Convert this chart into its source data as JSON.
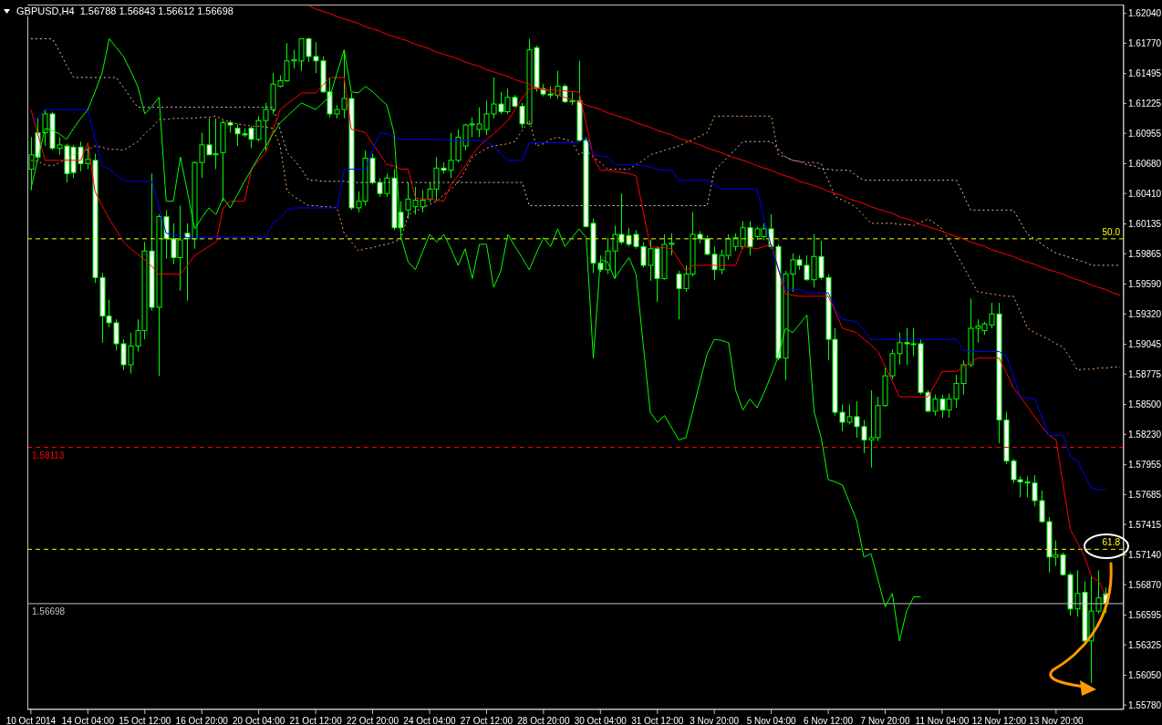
{
  "chart_data": {
    "type": "candlestick",
    "title": "GBPUSD,H4  1.56788 1.56843 1.56612 1.56698",
    "color": "#00ff00",
    "categories": [
      "10 Oct 2014",
      null,
      null,
      null,
      null,
      null,
      null,
      null,
      "14 Oct 04:00",
      null,
      null,
      null,
      null,
      null,
      null,
      null,
      "15 Oct 12:00",
      null,
      null,
      null,
      null,
      null,
      null,
      null,
      "16 Oct 20:00",
      null,
      null,
      null,
      null,
      null,
      null,
      null,
      "20 Oct 04:00",
      null,
      null,
      null,
      null,
      null,
      null,
      null,
      "21 Oct 12:00",
      null,
      null,
      null,
      null,
      null,
      null,
      null,
      "22 Oct 20:00",
      null,
      null,
      null,
      null,
      null,
      null,
      null,
      "24 Oct 04:00",
      null,
      null,
      null,
      null,
      null,
      null,
      null,
      "27 Oct 12:00",
      null,
      null,
      null,
      null,
      null,
      null,
      null,
      "28 Oct 20:00",
      null,
      null,
      null,
      null,
      null,
      null,
      null,
      "30 Oct 04:00",
      null,
      null,
      null,
      null,
      null,
      null,
      null,
      "31 Oct 12:00",
      null,
      null,
      null,
      null,
      null,
      null,
      null,
      "3 Nov 20:00",
      null,
      null,
      null,
      null,
      null,
      null,
      null,
      "5 Nov 04:00",
      null,
      null,
      null,
      null,
      null,
      null,
      null,
      "6 Nov 12:00",
      null,
      null,
      null,
      null,
      null,
      null,
      null,
      "7 Nov 20:00",
      null,
      null,
      null,
      null,
      null,
      null,
      null,
      "11 Nov 04:00",
      null,
      null,
      null,
      null,
      null,
      null,
      null,
      "12 Nov 12:00",
      null,
      null,
      null,
      null,
      null,
      null,
      null,
      "13 Nov 20:00",
      null,
      null,
      null,
      null,
      null,
      null,
      null,
      null,
      null
    ],
    "ohlc": [
      [
        1.6063,
        1.6092,
        1.6044,
        1.6076
      ],
      [
        1.6096,
        1.6109,
        1.6071,
        1.6074
      ],
      [
        1.6096,
        1.6117,
        1.6084,
        1.6113
      ],
      [
        1.6113,
        1.6115,
        1.608,
        1.6082
      ],
      [
        1.6082,
        1.6092,
        1.6076,
        1.6085
      ],
      [
        1.6084,
        1.6086,
        1.6051,
        1.6059
      ],
      [
        1.6083,
        1.6085,
        1.6055,
        1.606
      ],
      [
        1.6083,
        1.6088,
        1.6061,
        1.6068
      ],
      [
        1.6068,
        1.6084,
        1.6063,
        1.6072
      ],
      [
        1.6071,
        1.6077,
        1.596,
        1.5965
      ],
      [
        1.5965,
        1.5969,
        1.5906,
        1.593
      ],
      [
        1.593,
        1.5945,
        1.592,
        1.5924
      ],
      [
        1.5924,
        1.5927,
        1.5899,
        1.5905
      ],
      [
        1.5905,
        1.5909,
        1.5881,
        1.5886
      ],
      [
        1.5886,
        1.5915,
        1.5878,
        1.5903
      ],
      [
        1.5903,
        1.5927,
        1.5898,
        1.5917
      ],
      [
        1.5917,
        1.5997,
        1.5909,
        1.5989
      ],
      [
        1.5989,
        1.6059,
        1.5935,
        1.5938
      ],
      [
        1.5938,
        1.6022,
        1.5876,
        1.602
      ],
      [
        1.602,
        1.6026,
        1.5982,
        1.6
      ],
      [
        1.6,
        1.6014,
        1.5977,
        1.5983
      ],
      [
        1.5983,
        1.603,
        1.5953,
        1.5999
      ],
      [
        1.6005,
        1.6014,
        1.5944,
        1.6
      ],
      [
        1.6,
        1.607,
        1.5991,
        1.6069
      ],
      [
        1.6069,
        1.6096,
        1.6055,
        1.6085
      ],
      [
        1.6085,
        1.6109,
        1.6076,
        1.6076
      ],
      [
        1.6076,
        1.6109,
        1.6063,
        1.6077
      ],
      [
        1.6078,
        1.6107,
        1.6034,
        1.6105
      ],
      [
        1.6105,
        1.6107,
        1.6096,
        1.6103
      ],
      [
        1.61,
        1.6104,
        1.6084,
        1.6095
      ],
      [
        1.6095,
        1.61,
        1.6092,
        1.6094
      ],
      [
        1.61,
        1.6102,
        1.6082,
        1.609
      ],
      [
        1.609,
        1.6111,
        1.6088,
        1.6107
      ],
      [
        1.6107,
        1.6123,
        1.608,
        1.6117
      ],
      [
        1.6117,
        1.615,
        1.6113,
        1.614
      ],
      [
        1.6138,
        1.6148,
        1.6137,
        1.6143
      ],
      [
        1.6143,
        1.6177,
        1.6142,
        1.6161
      ],
      [
        1.6161,
        1.6171,
        1.6154,
        1.6162
      ],
      [
        1.6161,
        1.6181,
        1.6152,
        1.6181
      ],
      [
        1.6181,
        1.6182,
        1.616,
        1.6165
      ],
      [
        1.6165,
        1.6178,
        1.615,
        1.6161
      ],
      [
        1.6161,
        1.6165,
        1.6132,
        1.6133
      ],
      [
        1.6133,
        1.6146,
        1.611,
        1.6113
      ],
      [
        1.6113,
        1.6121,
        1.6109,
        1.6117
      ],
      [
        1.6117,
        1.6171,
        1.6109,
        1.6127
      ],
      [
        1.6127,
        1.6132,
        1.6026,
        1.6028
      ],
      [
        1.6028,
        1.6043,
        1.6024,
        1.6034
      ],
      [
        1.6034,
        1.608,
        1.603,
        1.6073
      ],
      [
        1.6073,
        1.6077,
        1.6049,
        1.6051
      ],
      [
        1.6051,
        1.6055,
        1.6038,
        1.6041
      ],
      [
        1.6041,
        1.6059,
        1.6038,
        1.6055
      ],
      [
        1.6055,
        1.6063,
        1.6008,
        1.601
      ],
      [
        1.6024,
        1.6034,
        1.6,
        1.601
      ],
      [
        1.6026,
        1.6051,
        1.6018,
        1.6036
      ],
      [
        1.6029,
        1.6047,
        1.6022,
        1.6035
      ],
      [
        1.6029,
        1.6044,
        1.6024,
        1.6035
      ],
      [
        1.6036,
        1.6051,
        1.6033,
        1.6045
      ],
      [
        1.6045,
        1.6074,
        1.6034,
        1.6064
      ],
      [
        1.6064,
        1.6069,
        1.6059,
        1.6062
      ],
      [
        1.6062,
        1.6096,
        1.6055,
        1.6071
      ],
      [
        1.6071,
        1.6099,
        1.6069,
        1.6092
      ],
      [
        1.6084,
        1.6104,
        1.608,
        1.6103
      ],
      [
        1.6103,
        1.611,
        1.6092,
        1.6104
      ],
      [
        1.6099,
        1.6119,
        1.6092,
        1.6104
      ],
      [
        1.6099,
        1.6125,
        1.6094,
        1.6113
      ],
      [
        1.6113,
        1.6146,
        1.6109,
        1.6122
      ],
      [
        1.6122,
        1.6133,
        1.6113,
        1.6115
      ],
      [
        1.6115,
        1.6136,
        1.6113,
        1.6128
      ],
      [
        1.6128,
        1.613,
        1.6119,
        1.612
      ],
      [
        1.612,
        1.6123,
        1.61,
        1.6104
      ],
      [
        1.6104,
        1.6181,
        1.6103,
        1.6171
      ],
      [
        1.6173,
        1.6175,
        1.6133,
        1.6136
      ],
      [
        1.6136,
        1.614,
        1.6129,
        1.6131
      ],
      [
        1.6131,
        1.6138,
        1.6127,
        1.613
      ],
      [
        1.613,
        1.6152,
        1.6127,
        1.6138
      ],
      [
        1.6138,
        1.614,
        1.6123,
        1.6124
      ],
      [
        1.6124,
        1.6133,
        1.6121,
        1.6125
      ],
      [
        1.6125,
        1.6161,
        1.6088,
        1.6089
      ],
      [
        1.6089,
        1.6092,
        1.601,
        1.6011
      ],
      [
        1.6014,
        1.6018,
        1.5969,
        1.5978
      ],
      [
        1.5978,
        1.5985,
        1.597,
        1.5972
      ],
      [
        1.5972,
        1.6001,
        1.5968,
        1.5989
      ],
      [
        1.5989,
        1.6012,
        1.5964,
        1.6004
      ],
      [
        1.6004,
        1.6041,
        1.5995,
        1.5997
      ],
      [
        1.6003,
        1.601,
        1.5993,
        1.5995
      ],
      [
        1.6004,
        1.6008,
        1.5991,
        1.5993
      ],
      [
        1.5993,
        1.5997,
        1.5974,
        1.5976
      ],
      [
        1.5976,
        1.5999,
        1.5962,
        1.5991
      ],
      [
        1.5991,
        1.5993,
        1.5943,
        1.5964
      ],
      [
        1.5964,
        1.6004,
        1.5963,
        1.5995
      ],
      [
        1.5995,
        1.6005,
        1.5985,
        1.5996
      ],
      [
        1.5968,
        1.5971,
        1.5927,
        1.5955
      ],
      [
        1.5955,
        1.5976,
        1.5952,
        1.5968
      ],
      [
        1.5968,
        1.6024,
        1.5966,
        1.6004
      ],
      [
        1.6004,
        1.6007,
        1.5996,
        1.6
      ],
      [
        1.6,
        1.6003,
        1.5985,
        1.5986
      ],
      [
        1.5986,
        1.5993,
        1.5963,
        1.5972
      ],
      [
        1.5972,
        1.599,
        1.5968,
        1.5985
      ],
      [
        1.5985,
        1.6004,
        1.5981,
        1.6
      ],
      [
        1.5993,
        1.6005,
        1.5989,
        1.6001
      ],
      [
        1.5993,
        1.6016,
        1.5991,
        1.601
      ],
      [
        1.601,
        1.6016,
        1.5985,
        1.5993
      ],
      [
        1.6002,
        1.6011,
        1.5999,
        1.6009
      ],
      [
        1.6002,
        1.6014,
        1.5999,
        1.6009
      ],
      [
        1.6009,
        1.6022,
        1.5991,
        1.5993
      ],
      [
        1.5993,
        1.5995,
        1.589,
        1.5892
      ],
      [
        1.5892,
        1.5971,
        1.5872,
        1.5968
      ],
      [
        1.5968,
        1.5987,
        1.5952,
        1.5981
      ],
      [
        1.5981,
        1.5985,
        1.5972,
        1.5976
      ],
      [
        1.5976,
        1.5985,
        1.5962,
        1.5963
      ],
      [
        1.5963,
        1.6004,
        1.5956,
        1.5984
      ],
      [
        1.5984,
        1.5998,
        1.5963,
        1.5965
      ],
      [
        1.5965,
        1.5968,
        1.589,
        1.5909
      ],
      [
        1.5909,
        1.5919,
        1.584,
        1.5843
      ],
      [
        1.5843,
        1.585,
        1.5826,
        1.5834
      ],
      [
        1.5834,
        1.585,
        1.5832,
        1.5839
      ],
      [
        1.5839,
        1.5853,
        1.582,
        1.583
      ],
      [
        1.583,
        1.5836,
        1.5806,
        1.5818
      ],
      [
        1.5818,
        1.5863,
        1.5793,
        1.582
      ],
      [
        1.582,
        1.5857,
        1.5817,
        1.5849
      ],
      [
        1.5849,
        1.5884,
        1.5848,
        1.5876
      ],
      [
        1.5876,
        1.59,
        1.5873,
        1.5896
      ],
      [
        1.5896,
        1.5915,
        1.5886,
        1.5906
      ],
      [
        1.5906,
        1.5919,
        1.5886,
        1.5905
      ],
      [
        1.5905,
        1.5919,
        1.5894,
        1.5905
      ],
      [
        1.5905,
        1.5909,
        1.5859,
        1.5861
      ],
      [
        1.5861,
        1.5863,
        1.5843,
        1.5844
      ],
      [
        1.5844,
        1.5859,
        1.584,
        1.5855
      ],
      [
        1.5855,
        1.5859,
        1.5838,
        1.5845
      ],
      [
        1.5845,
        1.586,
        1.5838,
        1.5855
      ],
      [
        1.5855,
        1.5877,
        1.5847,
        1.5869
      ],
      [
        1.5869,
        1.589,
        1.5859,
        1.5886
      ],
      [
        1.5886,
        1.5946,
        1.5884,
        1.5919
      ],
      [
        1.5919,
        1.5927,
        1.5906,
        1.5921
      ],
      [
        1.5917,
        1.5925,
        1.5913,
        1.5923
      ],
      [
        1.5922,
        1.5942,
        1.5919,
        1.5932
      ],
      [
        1.5932,
        1.5942,
        1.5815,
        1.5836
      ],
      [
        1.5836,
        1.5843,
        1.5796,
        1.5799
      ],
      [
        1.5799,
        1.5801,
        1.5779,
        1.5782
      ],
      [
        1.5782,
        1.5785,
        1.5766,
        1.578
      ],
      [
        1.578,
        1.5785,
        1.5766,
        1.5779
      ],
      [
        1.5779,
        1.5786,
        1.5758,
        1.5763
      ],
      [
        1.5763,
        1.5772,
        1.5743,
        1.5744
      ],
      [
        1.5744,
        1.5748,
        1.5698,
        1.5712
      ],
      [
        1.5712,
        1.5727,
        1.5704,
        1.5714
      ],
      [
        1.5714,
        1.5716,
        1.5695,
        1.5696
      ],
      [
        1.5696,
        1.5698,
        1.5659,
        1.5665
      ],
      [
        1.5665,
        1.57,
        1.5658,
        1.5679
      ],
      [
        1.568,
        1.569,
        1.5634,
        1.5636
      ],
      [
        1.5636,
        1.5694,
        1.5598,
        1.5663
      ],
      [
        1.5663,
        1.57,
        1.5661,
        1.5675
      ],
      [
        1.56788,
        1.56843,
        1.56612,
        1.56698
      ],
      null,
      null
    ],
    "ylim": [
      1.5574,
      1.6212
    ],
    "annotations": [
      {
        "text": "50.0",
        "y": 1.6
      },
      {
        "text": "61.8",
        "y": 1.5719
      }
    ],
    "yticks": [
      {
        "value": 1.6204,
        "label": "1.62040"
      },
      {
        "value": 1.6177,
        "label": "1.61770"
      },
      {
        "value": 1.61495,
        "label": "1.61495"
      },
      {
        "value": 1.61225,
        "label": "1.61225"
      },
      {
        "value": 1.60955,
        "label": "1.60955"
      },
      {
        "value": 1.6068,
        "label": "1.60680"
      },
      {
        "value": 1.6041,
        "label": "1.60410"
      },
      {
        "value": 1.60135,
        "label": "1.60135"
      },
      {
        "value": 1.59865,
        "label": "1.59865"
      },
      {
        "value": 1.5959,
        "label": "1.59590"
      },
      {
        "value": 1.5932,
        "label": "1.59320"
      },
      {
        "value": 1.59045,
        "label": "1.59045"
      },
      {
        "value": 1.58775,
        "label": "1.58775"
      },
      {
        "value": 1.585,
        "label": "1.58500"
      },
      {
        "value": 1.5823,
        "label": "1.58230"
      },
      {
        "value": 1.57955,
        "label": "1.57955"
      },
      {
        "value": 1.57685,
        "label": "1.57685"
      },
      {
        "value": 1.57415,
        "label": "1.57415"
      },
      {
        "value": 1.5714,
        "label": "1.57140"
      },
      {
        "value": 1.5687,
        "label": "1.56870"
      },
      {
        "value": 1.56595,
        "label": "1.56595"
      },
      {
        "value": 1.56325,
        "label": "1.56325"
      },
      {
        "value": 1.5605,
        "label": "1.56050"
      },
      {
        "value": 1.5578,
        "label": "1.55780"
      }
    ],
    "series": [
      {
        "type": "line",
        "color": "#f4a460",
        "line_style": "dotted",
        "values": [
          1.6071,
          1.607,
          1.6067,
          1.6066,
          1.6069,
          1.6072,
          1.6076,
          1.6078,
          1.6081,
          1.6084,
          1.6083,
          1.6081,
          1.6081,
          1.608,
          1.6084,
          1.6088,
          1.6095,
          1.6101,
          1.6108,
          1.6108,
          1.6109,
          1.6109,
          1.6109,
          1.6109,
          1.611,
          1.611,
          1.6111,
          1.6108,
          1.6105,
          1.6104,
          1.6103,
          1.6102,
          1.6102,
          1.6101,
          1.61,
          1.6084,
          1.6043,
          1.6038,
          1.6034,
          1.603,
          1.603,
          1.6029,
          1.6029,
          1.6028,
          1.6005,
          1.5997,
          1.5989,
          1.5991,
          1.5992,
          1.5994,
          1.5995,
          1.5997,
          1.6,
          1.6022,
          1.6025,
          1.6028,
          1.6031,
          1.6034,
          1.604,
          1.6045,
          1.6051,
          1.6062,
          1.6074,
          1.6078,
          1.6082,
          1.6084,
          1.6085,
          1.6086,
          1.6088,
          1.6098,
          1.6107,
          1.6084,
          1.6086,
          1.609,
          1.6092,
          1.609,
          1.6088,
          1.6076,
          1.608,
          1.6074,
          1.6069,
          1.6063,
          1.6063,
          1.6063,
          1.6063,
          1.6067,
          1.6071,
          1.6076,
          1.6078,
          1.608,
          1.6082,
          1.6084,
          1.6087,
          1.609,
          1.6093,
          1.6096,
          1.6111,
          1.6111,
          1.6111,
          1.6111,
          1.6111,
          1.6111,
          1.6111,
          1.6111,
          1.6111,
          1.6076,
          1.6074,
          1.6071,
          1.607,
          1.6069,
          1.6069,
          1.6068,
          1.6053,
          1.6038,
          1.6035,
          1.6032,
          1.6028,
          1.6021,
          1.6014,
          1.6014,
          1.6014,
          1.6014,
          1.6013,
          1.6013,
          1.6012,
          1.6015,
          1.6018,
          1.6014,
          1.6009,
          1.5998,
          1.5986,
          1.5975,
          1.5963,
          1.5952,
          1.5951,
          1.595,
          1.5949,
          1.5948,
          1.5948,
          1.5934,
          1.5919,
          1.5915,
          1.5912,
          1.5909,
          1.5905,
          1.5902,
          1.5892,
          1.5881,
          1.5882,
          1.5882,
          1.5883,
          1.5883,
          1.5884,
          1.5884
        ]
      },
      {
        "type": "line",
        "color": "#d8bfd8",
        "line_style": "dotted",
        "values": [
          1.6181,
          1.6181,
          1.6181,
          1.6181,
          1.617,
          1.6157,
          1.6146,
          1.6146,
          1.6146,
          1.6146,
          1.6146,
          1.6146,
          1.6146,
          1.6137,
          1.6128,
          1.6119,
          1.6119,
          1.6119,
          1.6119,
          1.6119,
          1.6119,
          1.6119,
          1.6119,
          1.6119,
          1.6119,
          1.6119,
          1.6119,
          1.6119,
          1.6119,
          1.6119,
          1.6119,
          1.6119,
          1.6119,
          1.6119,
          1.6119,
          1.6099,
          1.6078,
          1.6071,
          1.6063,
          1.6053,
          1.6053,
          1.6052,
          1.6052,
          1.6052,
          1.6052,
          1.6051,
          1.6051,
          1.6051,
          1.6051,
          1.6051,
          1.6051,
          1.6051,
          1.6051,
          1.6051,
          1.6051,
          1.6051,
          1.6051,
          1.6051,
          1.6051,
          1.6051,
          1.6051,
          1.6051,
          1.6051,
          1.6051,
          1.6051,
          1.6051,
          1.6051,
          1.6051,
          1.6051,
          1.6051,
          1.603,
          1.603,
          1.603,
          1.603,
          1.603,
          1.603,
          1.603,
          1.603,
          1.603,
          1.603,
          1.603,
          1.603,
          1.603,
          1.603,
          1.603,
          1.603,
          1.603,
          1.603,
          1.603,
          1.603,
          1.603,
          1.603,
          1.603,
          1.603,
          1.603,
          1.603,
          1.6062,
          1.6068,
          1.6075,
          1.6081,
          1.6088,
          1.6088,
          1.6088,
          1.6088,
          1.6088,
          1.6081,
          1.6074,
          1.6071,
          1.607,
          1.6067,
          1.6066,
          1.6063,
          1.6063,
          1.6062,
          1.6062,
          1.6062,
          1.6057,
          1.6053,
          1.6053,
          1.6053,
          1.6053,
          1.6053,
          1.6053,
          1.6053,
          1.6053,
          1.6053,
          1.6053,
          1.6053,
          1.6053,
          1.6053,
          1.6053,
          1.604,
          1.6026,
          1.6026,
          1.6026,
          1.6026,
          1.6026,
          1.6026,
          1.6026,
          1.6015,
          1.6004,
          1.6,
          1.5995,
          1.5991,
          1.5987,
          1.5985,
          1.5983,
          1.5981,
          1.5979,
          1.5976,
          1.5976,
          1.5976,
          1.5976,
          1.5976
        ]
      },
      {
        "type": "line",
        "color": "#ff0000",
        "values": [
          1.6117,
          1.6094,
          1.6071,
          1.6071,
          1.6071,
          1.6071,
          1.6071,
          1.6071,
          1.6087,
          1.6043,
          1.603,
          1.6018,
          1.6008,
          1.5997,
          1.5991,
          1.5986,
          1.5981,
          1.5975,
          1.5968,
          1.5968,
          1.5968,
          1.5968,
          1.5976,
          1.5985,
          1.5989,
          1.5993,
          1.5997,
          1.6028,
          1.6034,
          1.6034,
          1.6034,
          1.6063,
          1.6071,
          1.6078,
          1.6098,
          1.6117,
          1.6122,
          1.6127,
          1.6132,
          1.6132,
          1.6132,
          1.6139,
          1.6146,
          1.6146,
          1.6146,
          1.6099,
          1.6098,
          1.6096,
          1.6086,
          1.6077,
          1.6067,
          1.6066,
          1.6063,
          1.6063,
          1.6037,
          1.6036,
          1.6036,
          1.6035,
          1.6034,
          1.6049,
          1.6057,
          1.6066,
          1.6076,
          1.6084,
          1.609,
          1.6095,
          1.6101,
          1.6107,
          1.6117,
          1.6127,
          1.6136,
          1.6136,
          1.6135,
          1.6135,
          1.6134,
          1.6134,
          1.6133,
          1.6133,
          1.6104,
          1.6074,
          1.6062,
          1.6062,
          1.6061,
          1.606,
          1.6059,
          1.6057,
          1.6025,
          1.5993,
          1.5992,
          1.5992,
          1.5991,
          1.5981,
          1.5971,
          1.5976,
          1.5976,
          1.5976,
          1.5976,
          1.5976,
          1.5976,
          1.5976,
          1.5993,
          1.5992,
          1.5991,
          1.5993,
          1.5995,
          1.5972,
          1.595,
          1.5949,
          1.5948,
          1.5948,
          1.5948,
          1.5948,
          1.5948,
          1.5934,
          1.5919,
          1.5917,
          1.5915,
          1.5909,
          1.5904,
          1.5898,
          1.5884,
          1.5871,
          1.5857,
          1.5857,
          1.5857,
          1.5857,
          1.5857,
          1.5868,
          1.588,
          1.588,
          1.588,
          1.5884,
          1.5888,
          1.5892,
          1.5892,
          1.5892,
          1.5892,
          1.5879,
          1.5865,
          1.5857,
          1.5848,
          1.5839,
          1.583,
          1.5822,
          1.5818,
          1.5777,
          1.5737,
          1.5725,
          1.5712,
          1.5694,
          1.569,
          1.5677,
          null,
          null
        ]
      },
      {
        "type": "line",
        "color": "#0000ff",
        "values": [
          1.6105,
          1.611,
          1.6117,
          1.6117,
          1.6117,
          1.6117,
          1.6117,
          1.6117,
          1.6117,
          1.6091,
          1.6066,
          1.6063,
          1.6058,
          1.6053,
          1.6052,
          1.6052,
          1.6052,
          1.6052,
          1.6028,
          1.6005,
          1.6004,
          1.6003,
          1.6001,
          1.6001,
          1.6001,
          1.6001,
          1.6001,
          1.6001,
          1.6001,
          1.6001,
          1.6001,
          1.6001,
          1.6001,
          1.6001,
          1.6014,
          1.6019,
          1.6026,
          1.6028,
          1.6028,
          1.6028,
          1.6028,
          1.6028,
          1.6028,
          1.6028,
          1.6063,
          1.6063,
          1.6063,
          1.6063,
          1.608,
          1.6096,
          1.6095,
          1.6092,
          1.609,
          1.609,
          1.609,
          1.609,
          1.609,
          1.609,
          1.609,
          1.6089,
          1.6089,
          1.6089,
          1.6089,
          1.6089,
          1.6088,
          1.6084,
          1.6077,
          1.6071,
          1.6071,
          1.6071,
          1.6087,
          1.6087,
          1.6087,
          1.6087,
          1.6087,
          1.6087,
          1.6087,
          1.6087,
          1.6092,
          1.6076,
          1.6075,
          1.6074,
          1.6067,
          1.6067,
          1.6067,
          1.6067,
          1.6066,
          1.6065,
          1.6063,
          1.6062,
          1.6062,
          1.6053,
          1.6053,
          1.6053,
          1.6053,
          1.6053,
          1.6049,
          1.6045,
          1.6045,
          1.6045,
          1.6045,
          1.6045,
          1.6045,
          1.6018,
          1.5993,
          1.5973,
          1.5954,
          1.5954,
          1.5954,
          1.5951,
          1.5951,
          1.5951,
          1.5951,
          1.5937,
          1.5927,
          1.5926,
          1.5925,
          1.5917,
          1.5909,
          1.5909,
          1.5909,
          1.5909,
          1.5909,
          1.5909,
          1.5909,
          1.5909,
          1.5909,
          1.5909,
          1.5909,
          1.5909,
          1.5909,
          1.5899,
          1.5898,
          1.5898,
          1.5898,
          1.5898,
          1.5898,
          1.5894,
          1.5876,
          1.5857,
          1.5856,
          1.5855,
          1.5839,
          1.5822,
          1.5822,
          1.5822,
          1.5803,
          1.5799,
          1.5786,
          1.5774,
          1.5773,
          1.5773,
          null,
          null
        ]
      },
      {
        "type": "line",
        "color": "#00ff00",
        "values": [
          1.6045,
          1.6073,
          1.61,
          1.6098,
          1.6095,
          1.609,
          1.61,
          1.6109,
          1.6117,
          1.6133,
          1.615,
          1.6181,
          1.6173,
          1.6165,
          1.6152,
          1.6138,
          1.6113,
          1.612,
          1.6128,
          1.6034,
          1.6034,
          1.6074,
          1.6042,
          1.6009,
          1.6019,
          1.6028,
          1.6022,
          1.6037,
          1.6028,
          1.604,
          1.6052,
          1.6063,
          1.6074,
          1.6084,
          1.6095,
          1.6105,
          1.6111,
          1.6117,
          1.6123,
          1.612,
          1.6117,
          1.6123,
          1.6129,
          1.615,
          1.6171,
          1.6133,
          1.6132,
          1.6138,
          1.6133,
          1.6127,
          1.6121,
          1.6096,
          1.6001,
          1.5979,
          1.5972,
          1.5988,
          1.6004,
          1.5997,
          1.6004,
          1.5991,
          1.5976,
          1.5991,
          1.5964,
          1.5995,
          1.5995,
          1.5956,
          1.5971,
          1.6004,
          1.5993,
          1.5983,
          1.5972,
          1.5987,
          1.6001,
          1.5993,
          1.6009,
          1.5993,
          1.6001,
          1.6009,
          1.6001,
          1.5892,
          1.5981,
          1.5979,
          1.5964,
          1.5974,
          1.5983,
          1.5968,
          1.5905,
          1.5843,
          1.5834,
          1.584,
          1.5829,
          1.5818,
          1.582,
          1.5845,
          1.5871,
          1.5896,
          1.5909,
          1.5908,
          1.5906,
          1.5863,
          1.5845,
          1.5855,
          1.5847,
          1.5861,
          1.5877,
          1.5894,
          1.5919,
          1.5915,
          1.5923,
          1.5931,
          1.5844,
          1.582,
          1.5782,
          1.578,
          1.5777,
          1.5761,
          1.5745,
          1.5712,
          1.5715,
          1.5691,
          1.5667,
          1.5679,
          1.5636,
          1.5663,
          1.5676,
          1.5676,
          null,
          null,
          null,
          null,
          null,
          null,
          null,
          null,
          null,
          null,
          null,
          null,
          null,
          null,
          null,
          null,
          null,
          null,
          null,
          null,
          null,
          null,
          null,
          null,
          null,
          null,
          null,
          null
        ]
      },
      {
        "type": "line",
        "color": "#ff0000",
        "values": [
          null,
          null,
          null,
          null,
          null,
          null,
          null,
          null,
          null,
          null,
          null,
          null,
          null,
          null,
          null,
          null,
          null,
          null,
          null,
          null,
          null,
          null,
          null,
          null,
          null,
          null,
          null,
          null,
          null,
          null,
          null,
          null,
          null,
          null,
          null,
          null,
          null,
          null,
          null,
          1.6211,
          1.6208,
          1.6206,
          1.6204,
          1.6201,
          1.6199,
          1.6197,
          1.6195,
          1.6192,
          1.619,
          1.6188,
          1.6185,
          1.6183,
          1.6181,
          1.6179,
          1.6176,
          1.6174,
          1.6172,
          1.6169,
          1.6167,
          1.6165,
          1.6163,
          1.616,
          1.6158,
          1.6156,
          1.6153,
          1.6151,
          1.6149,
          1.6147,
          1.6144,
          1.6142,
          1.614,
          1.6137,
          1.6135,
          1.6133,
          1.613,
          1.6128,
          1.6126,
          1.6124,
          1.6121,
          1.6119,
          1.6117,
          1.6114,
          1.6112,
          1.611,
          1.6108,
          1.6105,
          1.6103,
          1.6101,
          1.6098,
          1.6096,
          1.6094,
          1.6091,
          1.6089,
          1.6087,
          1.6085,
          1.6082,
          1.608,
          1.6078,
          1.6075,
          1.6073,
          1.6071,
          1.6069,
          1.6066,
          1.6064,
          1.6062,
          1.6059,
          1.6057,
          1.6055,
          1.6052,
          1.605,
          1.6048,
          1.6046,
          1.6043,
          1.6041,
          1.6039,
          1.6036,
          1.6034,
          1.6032,
          1.6029,
          1.6027,
          1.6025,
          1.6023,
          1.602,
          1.6018,
          1.6016,
          1.6013,
          1.6011,
          1.6009,
          1.6007,
          1.6004,
          1.6002,
          1.6,
          1.5997,
          1.5995,
          1.5993,
          1.599,
          1.5988,
          1.5986,
          1.5984,
          1.5981,
          1.5979,
          1.5977,
          1.5974,
          1.5972,
          1.597,
          1.5968,
          1.5965,
          1.5963,
          1.5961,
          1.5958,
          1.5956,
          1.5954,
          1.5951,
          1.5949
        ]
      }
    ],
    "ref_lines": [
      {
        "axis": "y",
        "value": 1.6,
        "color": "#ffff00",
        "line_style": "dashed"
      },
      {
        "axis": "y",
        "value": 1.5719,
        "color": "#ffff00",
        "line_style": "dashed"
      },
      {
        "axis": "y",
        "value": 1.58113,
        "label": "1.58113",
        "color": "#ff0000",
        "line_style": "dashed"
      },
      {
        "axis": "y",
        "value": 1.56698,
        "label": "1.56698",
        "color": "#c0c0c0",
        "line_style": "solid"
      }
    ]
  }
}
